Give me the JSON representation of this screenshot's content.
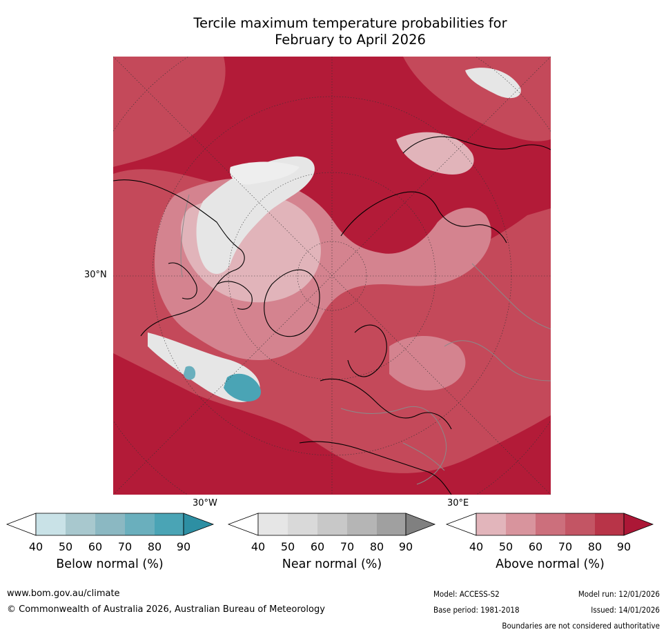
{
  "title": {
    "line1": "Tercile maximum temperature probabilities for",
    "line2": "February to April 2026"
  },
  "map": {
    "lat_label": "30°N",
    "lon_labels": [
      "30°W",
      "30°E"
    ],
    "colors": {
      "above_dark": "#b31b38",
      "above_mid": "#c4495a",
      "above_light": "#d4838f",
      "above_pale": "#e1b4ba",
      "near": "#e6e6e6",
      "below": "#3a9aab",
      "coast": "#000000",
      "border": "#8a8a8a"
    }
  },
  "colorbars": [
    {
      "name": "below",
      "label": "Below normal (%)",
      "ticks": [
        "40",
        "50",
        "60",
        "70",
        "80",
        "90"
      ],
      "colors": [
        "#ffffff",
        "#c9e2e7",
        "#a8c8ce",
        "#8bb8c2",
        "#6aafbd",
        "#4aa4b5",
        "#2d8fa3"
      ]
    },
    {
      "name": "near",
      "label": "Near normal (%)",
      "ticks": [
        "40",
        "50",
        "60",
        "70",
        "80",
        "90"
      ],
      "colors": [
        "#ffffff",
        "#e6e6e6",
        "#d9d9d9",
        "#c8c8c8",
        "#b5b5b5",
        "#a0a0a0",
        "#808080"
      ]
    },
    {
      "name": "above",
      "label": "Above normal (%)",
      "ticks": [
        "40",
        "50",
        "60",
        "70",
        "80",
        "90"
      ],
      "colors": [
        "#ffffff",
        "#e2b5bb",
        "#d8949d",
        "#cc6f7c",
        "#c35564",
        "#b83448",
        "#ac1736"
      ]
    }
  ],
  "footer": {
    "url": "www.bom.gov.au/climate",
    "copyright": "© Commonwealth of Australia 2026, Australian Bureau of Meteorology",
    "model": "Model: ACCESS-S2",
    "model_run": "Model run: 12/01/2026",
    "base_period": "Base period: 1981-2018",
    "issued": "Issued: 14/01/2026",
    "disclaimer": "Boundaries are not considered authoritative"
  }
}
